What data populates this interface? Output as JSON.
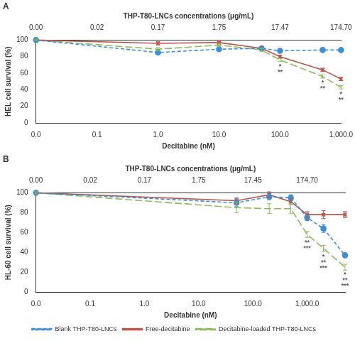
{
  "chart_data": [
    {
      "type": "line",
      "title": "A",
      "xlabel": "Decitabine (nM)",
      "ylabel": "HEL cell survival (%)",
      "x2label": "THP-T80-LNCs concentrations (μg/mL)",
      "log": "x",
      "grid": false,
      "x": [
        0.01,
        1,
        10,
        50,
        100,
        500,
        1000
      ],
      "xlim": [
        0.01,
        1000
      ],
      "xticks": [
        {
          "value": 0.01,
          "label": "0.0"
        },
        0.1,
        {
          "value": 1,
          "label": "1.0"
        },
        {
          "value": 10,
          "label": "10.0"
        },
        {
          "value": 100,
          "label": "100.0"
        },
        {
          "value": 1000,
          "label": "1,000.0"
        }
      ],
      "x2lim": [
        0.001747,
        174.7
      ],
      "x2ticks": [
        {
          "value": 0.001747,
          "label": "0.00"
        },
        {
          "value": 0.01747,
          "label": "0.02"
        },
        {
          "value": 0.1747,
          "label": "0.17"
        },
        {
          "value": 1.747,
          "label": "1.75"
        },
        17.47,
        {
          "value": 174.7,
          "label": "174.70"
        }
      ],
      "ylim": [
        0,
        100
      ],
      "yticks": [
        0,
        20,
        40,
        60,
        80,
        100
      ],
      "series": [
        {
          "name": "Blank THP-T80-LNCs",
          "color": "#3d8fd1",
          "marker": "circle",
          "line_style": "dashed",
          "values": [
            100,
            85,
            89,
            90,
            87,
            88,
            88
          ],
          "errors": [
            1,
            2,
            2,
            2,
            1,
            2,
            2
          ]
        },
        {
          "name": "Free-decitabine",
          "color": "#b5574b",
          "marker": "cross",
          "line_style": "solid",
          "values": [
            100,
            96,
            97,
            90,
            80,
            64,
            53
          ],
          "errors": [
            1,
            2,
            3,
            2,
            2,
            2,
            2
          ]
        },
        {
          "name": "Decitabine-loaded THP-T80-LNCs",
          "color": "#8dba5a",
          "marker": "none",
          "line_style": "long-dashed",
          "values": [
            100,
            89,
            94,
            88,
            76,
            56,
            43
          ],
          "errors": [
            1,
            2,
            2,
            2,
            2,
            2,
            2
          ]
        }
      ],
      "annotations": [
        {
          "x": 100,
          "y": 72,
          "lines": [
            "*",
            "**"
          ]
        },
        {
          "x": 500,
          "y": 52,
          "lines": [
            "*",
            "**"
          ]
        },
        {
          "x": 1000,
          "y": 39,
          "lines": [
            "*",
            "**"
          ]
        }
      ]
    },
    {
      "type": "line",
      "title": "B",
      "xlabel": "Decitabine (nM)",
      "ylabel": "HL-60 cell survival (%)",
      "x2label": "THP-T80-LNCs concentrations (μg/mL)",
      "log": "x",
      "grid": false,
      "legend": "bottom",
      "x": [
        0.01,
        50,
        200,
        500,
        1000,
        2000,
        5000
      ],
      "xlim": [
        0.01,
        5000
      ],
      "xticks": [
        {
          "value": 0.01,
          "label": "0.0"
        },
        0.1,
        {
          "value": 1,
          "label": "1.0"
        },
        {
          "value": 10,
          "label": "10.0"
        },
        {
          "value": 100,
          "label": "100.0"
        },
        {
          "value": 1000,
          "label": "1,000.0"
        }
      ],
      "x2lim": [
        0.001747,
        873.5
      ],
      "x2ticks": [
        {
          "value": 0.001747,
          "label": "0.00"
        },
        {
          "value": 0.01747,
          "label": "0.02"
        },
        {
          "value": 0.1747,
          "label": "0.17"
        },
        {
          "value": 1.747,
          "label": "1.75"
        },
        17.45,
        {
          "value": 174.7,
          "label": "174.70"
        }
      ],
      "ylim": [
        0,
        100
      ],
      "yticks": [
        0,
        20,
        40,
        60,
        80,
        100
      ],
      "series": [
        {
          "name": "Blank THP-T80-LNCs",
          "color": "#3d8fd1",
          "marker": "circle",
          "line_style": "dashed",
          "values": [
            100,
            90,
            96,
            95,
            75,
            64,
            37
          ],
          "errors": [
            1,
            4,
            3,
            3,
            3,
            4,
            2
          ]
        },
        {
          "name": "Free-decitabine",
          "color": "#b5574b",
          "marker": "cross",
          "line_style": "solid",
          "values": [
            100,
            92,
            98,
            91,
            78,
            78,
            78
          ],
          "errors": [
            1,
            3,
            3,
            3,
            3,
            4,
            3
          ]
        },
        {
          "name": "Decitabine-loaded THP-T80-LNCs",
          "color": "#8dba5a",
          "marker": "none",
          "line_style": "long-dashed",
          "values": [
            100,
            85,
            84,
            84,
            58,
            44,
            25
          ],
          "errors": [
            1,
            5,
            5,
            5,
            3,
            3,
            3
          ]
        }
      ],
      "annotations": [
        {
          "x": 1000,
          "y": 53,
          "lines": [
            "**",
            "***"
          ]
        },
        {
          "x": 2000,
          "y": 39,
          "lines": [
            "*",
            "**",
            "***"
          ]
        },
        {
          "x": 5000,
          "y": 21,
          "lines": [
            "*",
            "**",
            "***"
          ]
        }
      ]
    }
  ]
}
